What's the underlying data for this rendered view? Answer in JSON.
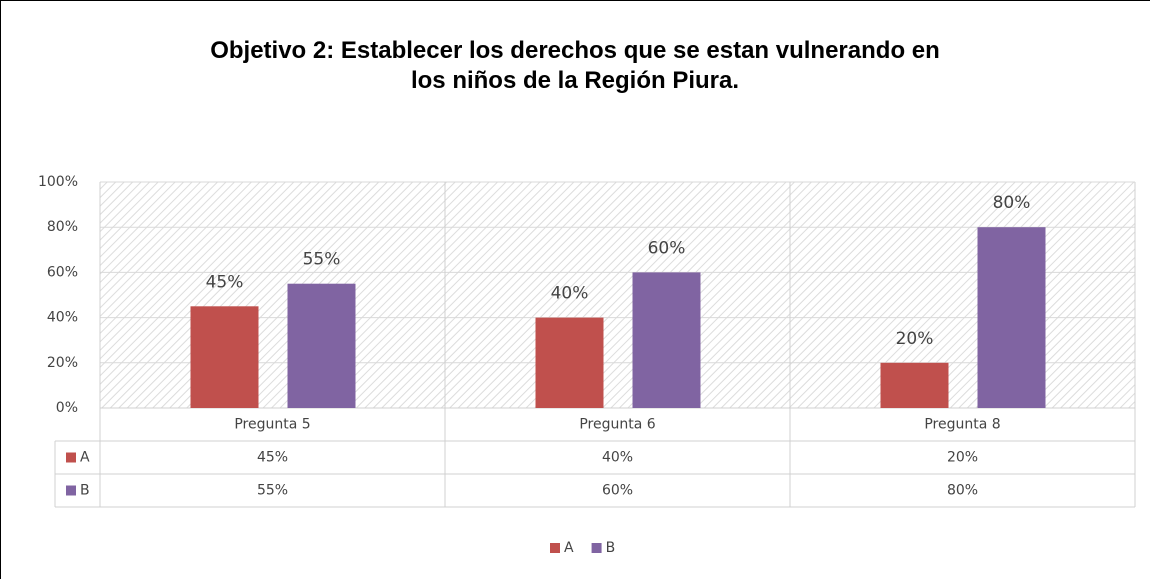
{
  "chart_data": {
    "type": "bar",
    "title": "Objetivo 2: Establecer los derechos que se estan vulnerando en\nlos niños de la Región Piura.",
    "categories": [
      "Pregunta 5",
      "Pregunta 6",
      "Pregunta 8"
    ],
    "series": [
      {
        "name": "A",
        "color": "#c0504d",
        "values": [
          45,
          40,
          20
        ],
        "value_labels": [
          "45%",
          "40%",
          "20%"
        ]
      },
      {
        "name": "B",
        "color": "#8064a2",
        "values": [
          55,
          60,
          80
        ],
        "value_labels": [
          "55%",
          "60%",
          "80%"
        ]
      }
    ],
    "ylim": [
      0,
      100
    ],
    "yticks": [
      {
        "value": 0,
        "label": "0%"
      },
      {
        "value": 20,
        "label": "20%"
      },
      {
        "value": 40,
        "label": "40%"
      },
      {
        "value": 60,
        "label": "60%"
      },
      {
        "value": 80,
        "label": "80%"
      },
      {
        "value": 100,
        "label": "100%"
      }
    ],
    "grid": true,
    "legend": "bottom"
  }
}
